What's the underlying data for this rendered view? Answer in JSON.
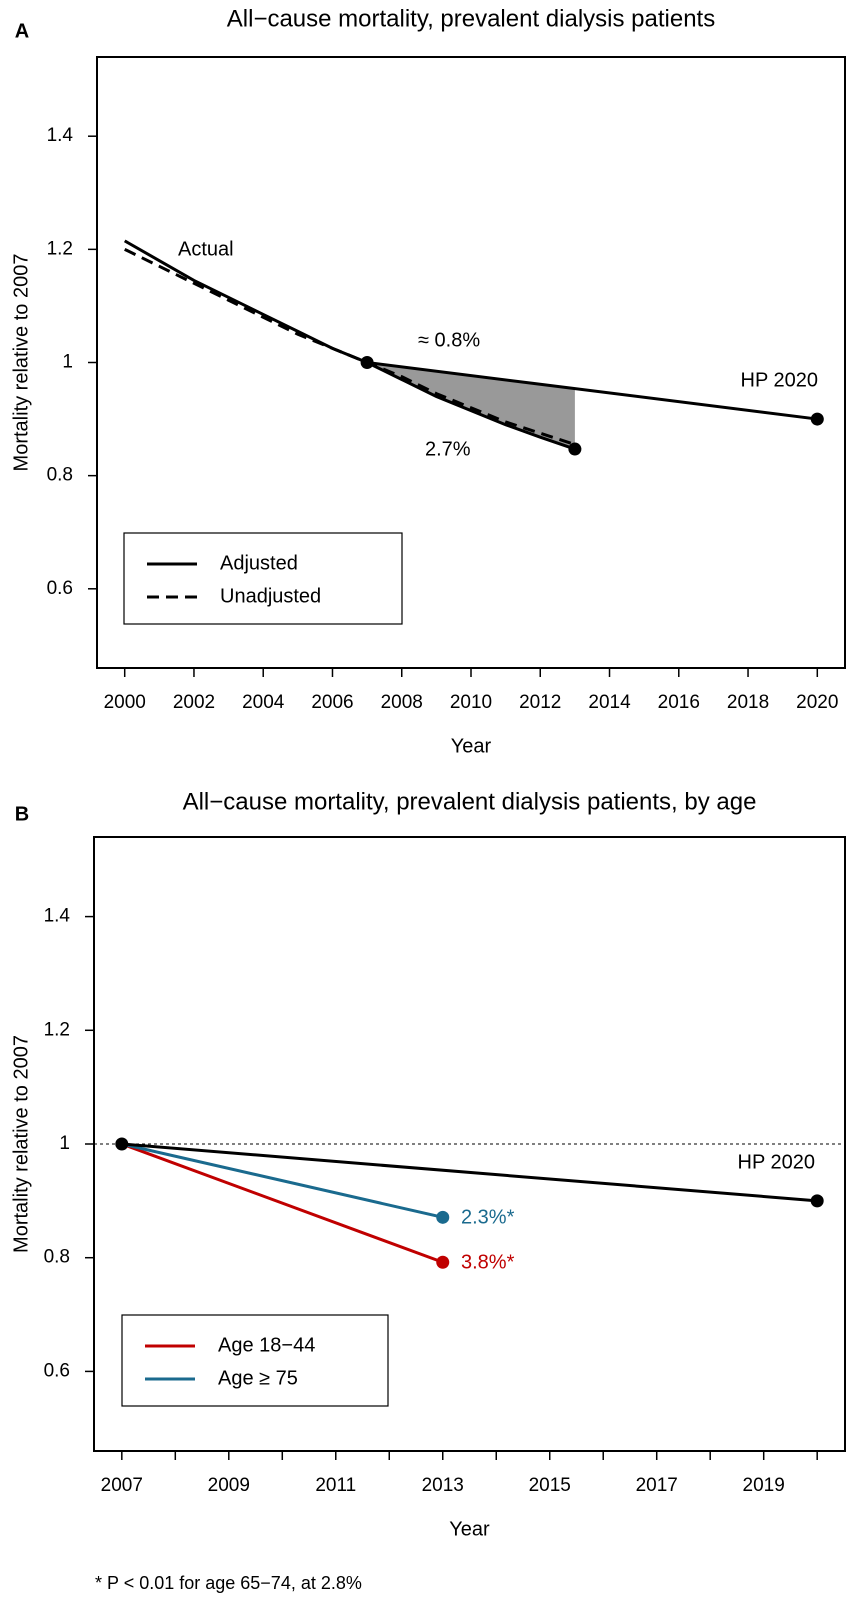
{
  "chart_data": [
    {
      "type": "line",
      "panel": "A",
      "title": "All−cause mortality, prevalent dialysis patients",
      "x_label": "Year",
      "y_label": "Mortality relative to 2007",
      "xlim": [
        1999.2,
        2020.8
      ],
      "xticks": [
        2000,
        2002,
        2004,
        2006,
        2008,
        2010,
        2012,
        2014,
        2016,
        2018,
        2020
      ],
      "ylim": [
        0.46,
        1.54
      ],
      "yticks": [
        0.6,
        0.8,
        1,
        1.2,
        1.4
      ],
      "x": [
        2000,
        2001,
        2002,
        2003,
        2004,
        2005,
        2006,
        2007,
        2008,
        2009,
        2010,
        2011,
        2012,
        2013
      ],
      "series": [
        {
          "name": "Adjusted",
          "color": "#000000",
          "dash": false,
          "marker": "last",
          "values": [
            1.215,
            1.18,
            1.145,
            1.115,
            1.085,
            1.055,
            1.025,
            1.0,
            0.97,
            0.94,
            0.915,
            0.89,
            0.868,
            0.847
          ]
        },
        {
          "name": "Unadjusted",
          "color": "#000000",
          "dash": true,
          "values": [
            1.2,
            1.17,
            1.14,
            1.11,
            1.08,
            1.05,
            1.025,
            1.0,
            0.975,
            0.945,
            0.92,
            0.895,
            0.875,
            0.855
          ]
        }
      ],
      "target": {
        "label": "HP 2020",
        "x": [
          2007,
          2020
        ],
        "values": [
          1.0,
          0.9
        ],
        "color": "#000000"
      },
      "shade": {
        "color": "#999999"
      },
      "annotations": [
        {
          "text": "Actual",
          "color": "#000000"
        },
        {
          "text": "≈ 0.8%",
          "color": "#000000"
        },
        {
          "text": "2.7%",
          "color": "#000000"
        }
      ]
    },
    {
      "type": "line",
      "panel": "B",
      "title": "All−cause mortality, prevalent dialysis patients, by age",
      "x_label": "Year",
      "y_label": "Mortality relative to 2007",
      "xlim": [
        2006.48,
        2020.52
      ],
      "xticks": [
        2007,
        2009,
        2011,
        2013,
        2015,
        2017,
        2019
      ],
      "xminor_ticks": [
        2008,
        2010,
        2012,
        2014,
        2016,
        2018,
        2020
      ],
      "ylim": [
        0.46,
        1.54
      ],
      "yticks": [
        0.6,
        0.8,
        1,
        1.2,
        1.4
      ],
      "hline": 1,
      "x": [
        2007,
        2013
      ],
      "series": [
        {
          "name": "Age 18−44",
          "color": "#c00000",
          "dash": false,
          "marker": "last",
          "values": [
            1.0,
            0.792
          ]
        },
        {
          "name": "Age ≥ 75",
          "color": "#1a6a8e",
          "dash": false,
          "marker": "last",
          "values": [
            1.0,
            0.871
          ]
        }
      ],
      "target": {
        "label": "HP 2020",
        "x": [
          2007,
          2020
        ],
        "values": [
          1.0,
          0.9
        ],
        "color": "#000000"
      },
      "annotations": [
        {
          "text": "2.3%*",
          "color": "#1a6a8e"
        },
        {
          "text": "3.8%*",
          "color": "#c00000"
        }
      ],
      "footnote": "* P < 0.01 for age 65−74, at 2.8%"
    }
  ]
}
